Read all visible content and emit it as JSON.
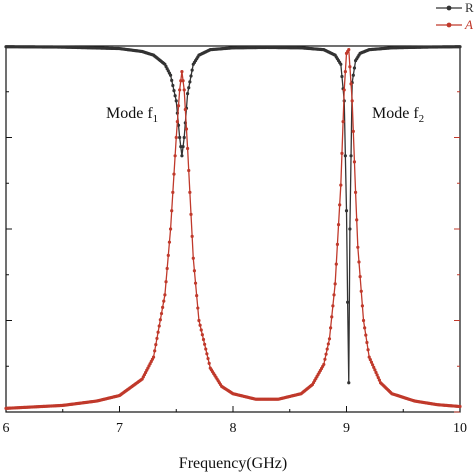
{
  "chart_data": {
    "type": "line",
    "xlabel": "Frequency(GHz)",
    "xlim": [
      6,
      10
    ],
    "x_ticks": [
      "6",
      "7",
      "8",
      "9",
      "10"
    ],
    "ylim": [
      0,
      1
    ],
    "grid": false,
    "legend_placement": "top-right",
    "legend_entries": [
      "R",
      "A"
    ],
    "annotations": [
      {
        "text": "Mode f",
        "sub": "1",
        "x": 7.55
      },
      {
        "text": "Mode f",
        "sub": "2",
        "x": 9.02
      }
    ],
    "series": [
      {
        "name": "R",
        "color": "#333333",
        "x": [
          6.0,
          6.5,
          7.0,
          7.2,
          7.3,
          7.4,
          7.45,
          7.5,
          7.53,
          7.55,
          7.57,
          7.6,
          7.65,
          7.7,
          7.8,
          8.0,
          8.3,
          8.6,
          8.8,
          8.9,
          8.95,
          8.98,
          9.0,
          9.01,
          9.02,
          9.03,
          9.05,
          9.08,
          9.12,
          9.2,
          9.4,
          9.7,
          10.0
        ],
        "values": [
          0.998,
          0.997,
          0.993,
          0.985,
          0.975,
          0.95,
          0.92,
          0.85,
          0.75,
          0.7,
          0.75,
          0.87,
          0.95,
          0.975,
          0.99,
          0.995,
          0.996,
          0.995,
          0.99,
          0.975,
          0.95,
          0.85,
          0.55,
          0.3,
          0.08,
          0.5,
          0.9,
          0.96,
          0.98,
          0.99,
          0.995,
          0.997,
          0.998
        ]
      },
      {
        "name": "A",
        "color": "#c0392b",
        "x": [
          6.0,
          6.5,
          6.8,
          7.0,
          7.2,
          7.3,
          7.4,
          7.45,
          7.5,
          7.53,
          7.55,
          7.57,
          7.6,
          7.65,
          7.7,
          7.8,
          7.9,
          8.0,
          8.2,
          8.4,
          8.6,
          8.7,
          8.8,
          8.85,
          8.9,
          8.95,
          8.98,
          9.0,
          9.02,
          9.05,
          9.08,
          9.1,
          9.15,
          9.2,
          9.3,
          9.4,
          9.6,
          9.8,
          10.0
        ],
        "values": [
          0.01,
          0.018,
          0.03,
          0.045,
          0.09,
          0.15,
          0.32,
          0.5,
          0.75,
          0.88,
          0.93,
          0.88,
          0.72,
          0.42,
          0.25,
          0.12,
          0.07,
          0.05,
          0.035,
          0.035,
          0.05,
          0.075,
          0.13,
          0.2,
          0.35,
          0.62,
          0.88,
          0.98,
          0.99,
          0.85,
          0.6,
          0.45,
          0.25,
          0.15,
          0.08,
          0.05,
          0.03,
          0.02,
          0.015
        ]
      }
    ]
  }
}
